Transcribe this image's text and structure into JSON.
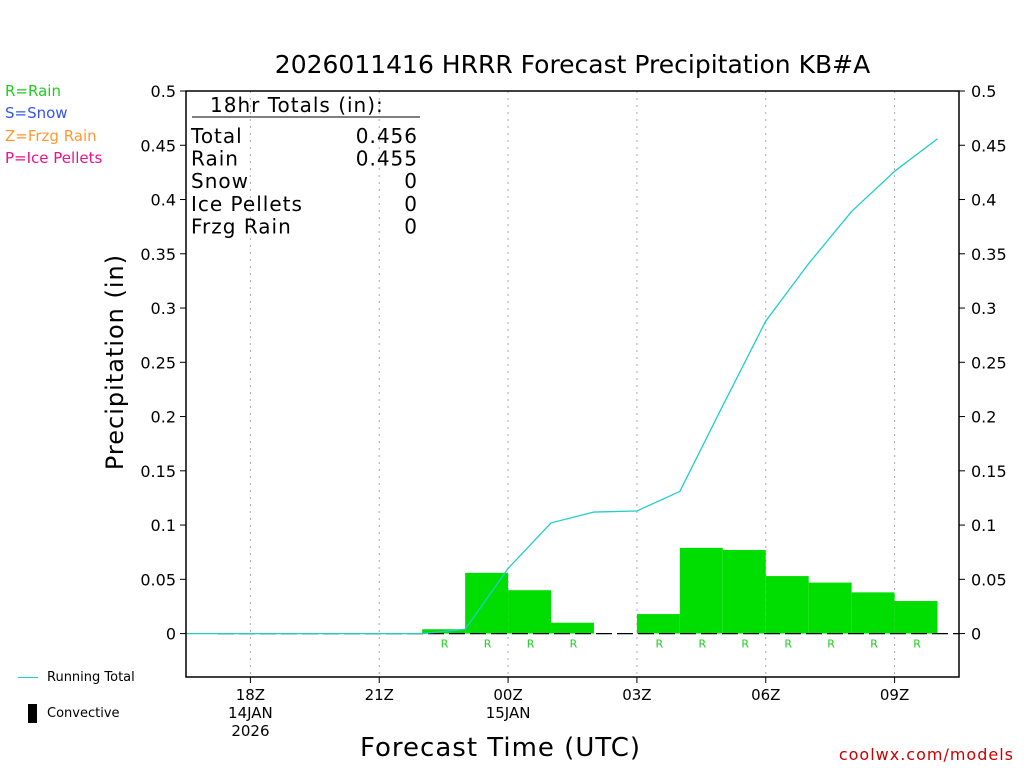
{
  "title": "2026011416 HRRR Forecast Precipitation KB#A",
  "type_legend": [
    {
      "label": "R=Rain",
      "color": "#22cc22"
    },
    {
      "label": "S=Snow",
      "color": "#3355ee"
    },
    {
      "label": "Z=Frzg Rain",
      "color": "#ff9933"
    },
    {
      "label": "P=Ice Pellets",
      "color": "#ee1188"
    }
  ],
  "totals": {
    "header": "18hr Totals (in):",
    "rows": [
      {
        "label": "Total",
        "value": "0.456"
      },
      {
        "label": "Rain",
        "value": "0.455"
      },
      {
        "label": "Snow",
        "value": "0"
      },
      {
        "label": "Ice Pellets",
        "value": "0"
      },
      {
        "label": "Frzg Rain",
        "value": "0"
      }
    ]
  },
  "bottom_legend": {
    "running_total": "Running Total",
    "convective": "Convective"
  },
  "credit": "coolwx.com/models",
  "chart_data": {
    "type": "bar",
    "ylabel": "Precipitation (in)",
    "xlabel": "Forecast Time (UTC)",
    "ylim": [
      -0.04,
      0.5
    ],
    "yticks": [
      0,
      0.05,
      0.1,
      0.15,
      0.2,
      0.25,
      0.3,
      0.35,
      0.4,
      0.45,
      0.5
    ],
    "ytick_labels": [
      "0",
      "0.05",
      "0.1",
      "0.15",
      "0.2",
      "0.25",
      "0.3",
      "0.35",
      "0.4",
      "0.45",
      "0.5"
    ],
    "xlim": [
      16.5,
      34.5
    ],
    "xticks": [
      {
        "x": 18,
        "lines": [
          "18Z",
          "14JAN",
          "2026"
        ]
      },
      {
        "x": 21,
        "lines": [
          "21Z"
        ]
      },
      {
        "x": 24,
        "lines": [
          "00Z",
          "15JAN"
        ]
      },
      {
        "x": 27,
        "lines": [
          "03Z"
        ]
      },
      {
        "x": 30,
        "lines": [
          "06Z"
        ]
      },
      {
        "x": 33,
        "lines": [
          "09Z"
        ]
      }
    ],
    "grid": "vertical dotted",
    "hourly_bars": {
      "hours": [
        17,
        18,
        19,
        20,
        21,
        22,
        23,
        24,
        25,
        26,
        27,
        28,
        29,
        30,
        31,
        32,
        33,
        34
      ],
      "values": [
        0,
        0,
        0,
        0,
        0,
        0,
        0.004,
        0.056,
        0.04,
        0.01,
        0,
        0.018,
        0.079,
        0.077,
        0.053,
        0.047,
        0.038,
        0.03
      ],
      "type_markers": [
        "",
        "",
        "",
        "",
        "",
        "",
        "R",
        "R",
        "R",
        "R",
        "",
        "R",
        "R",
        "R",
        "R",
        "R",
        "R",
        "R"
      ],
      "color": "#00dd00"
    },
    "running_total": {
      "x": [
        16.5,
        17,
        18,
        19,
        20,
        21,
        22,
        23,
        24,
        25,
        26,
        27,
        28,
        29,
        30,
        31,
        32,
        33,
        34
      ],
      "values": [
        0,
        0,
        0,
        0,
        0,
        0,
        0,
        0.004,
        0.06,
        0.102,
        0.112,
        0.113,
        0.131,
        0.21,
        0.288,
        0.341,
        0.389,
        0.426,
        0.456
      ],
      "color": "#22cccc"
    }
  }
}
